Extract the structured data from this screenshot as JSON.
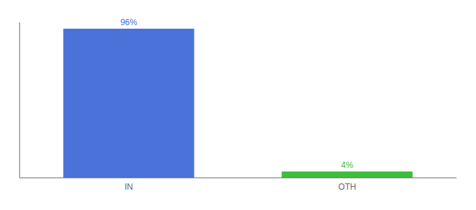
{
  "chart_data": {
    "type": "bar",
    "categories": [
      "IN",
      "OTH"
    ],
    "values": [
      96,
      4
    ],
    "value_labels": [
      "96%",
      "4%"
    ],
    "colors": [
      "#4a72d9",
      "#3dbf3d"
    ],
    "ylim": [
      0,
      100
    ],
    "data_labels": true,
    "tick_labels": "x",
    "grid": false
  }
}
